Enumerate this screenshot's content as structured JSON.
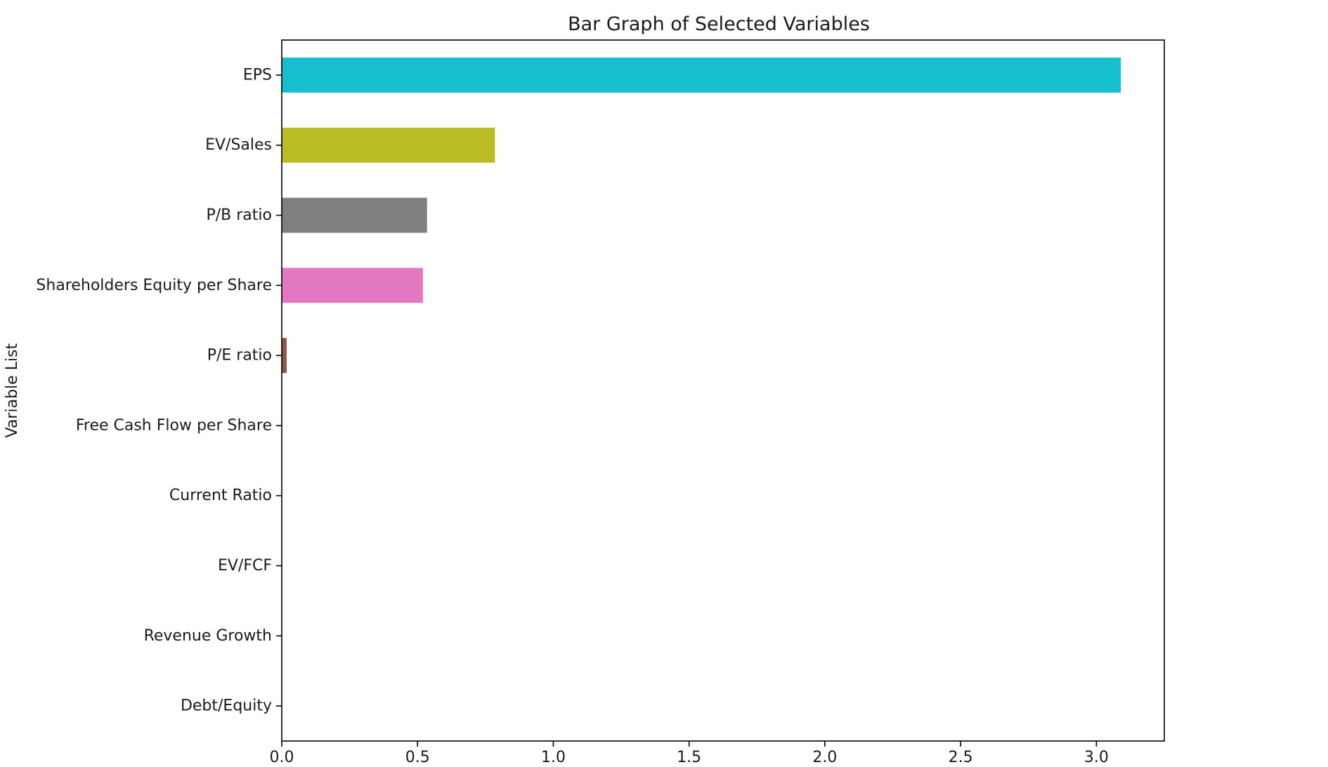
{
  "chart_data": {
    "type": "bar",
    "orientation": "horizontal",
    "title": "Bar Graph of Selected Variables",
    "xlabel": "",
    "ylabel": "Variable List",
    "categories": [
      "EPS",
      "EV/Sales",
      "P/B ratio",
      "Shareholders Equity per Share",
      "P/E ratio",
      "Free Cash Flow per Share",
      "Current Ratio",
      "EV/FCF",
      "Revenue Growth",
      "Debt/Equity"
    ],
    "values": [
      3.09,
      0.785,
      0.535,
      0.52,
      0.018,
      0,
      0,
      0,
      0,
      0
    ],
    "colors": [
      "#17becf",
      "#bcbd22",
      "#7f7f7f",
      "#e377c2",
      "#8c564b",
      "#c49c94",
      "#9467bd",
      "#d62728",
      "#2ca02c",
      "#ff7f0e"
    ],
    "xlim": [
      0,
      3.25
    ],
    "xticks": [
      "0.0",
      "0.5",
      "1.0",
      "1.5",
      "2.0",
      "2.5",
      "3.0"
    ],
    "grid": false,
    "legend": "none"
  }
}
